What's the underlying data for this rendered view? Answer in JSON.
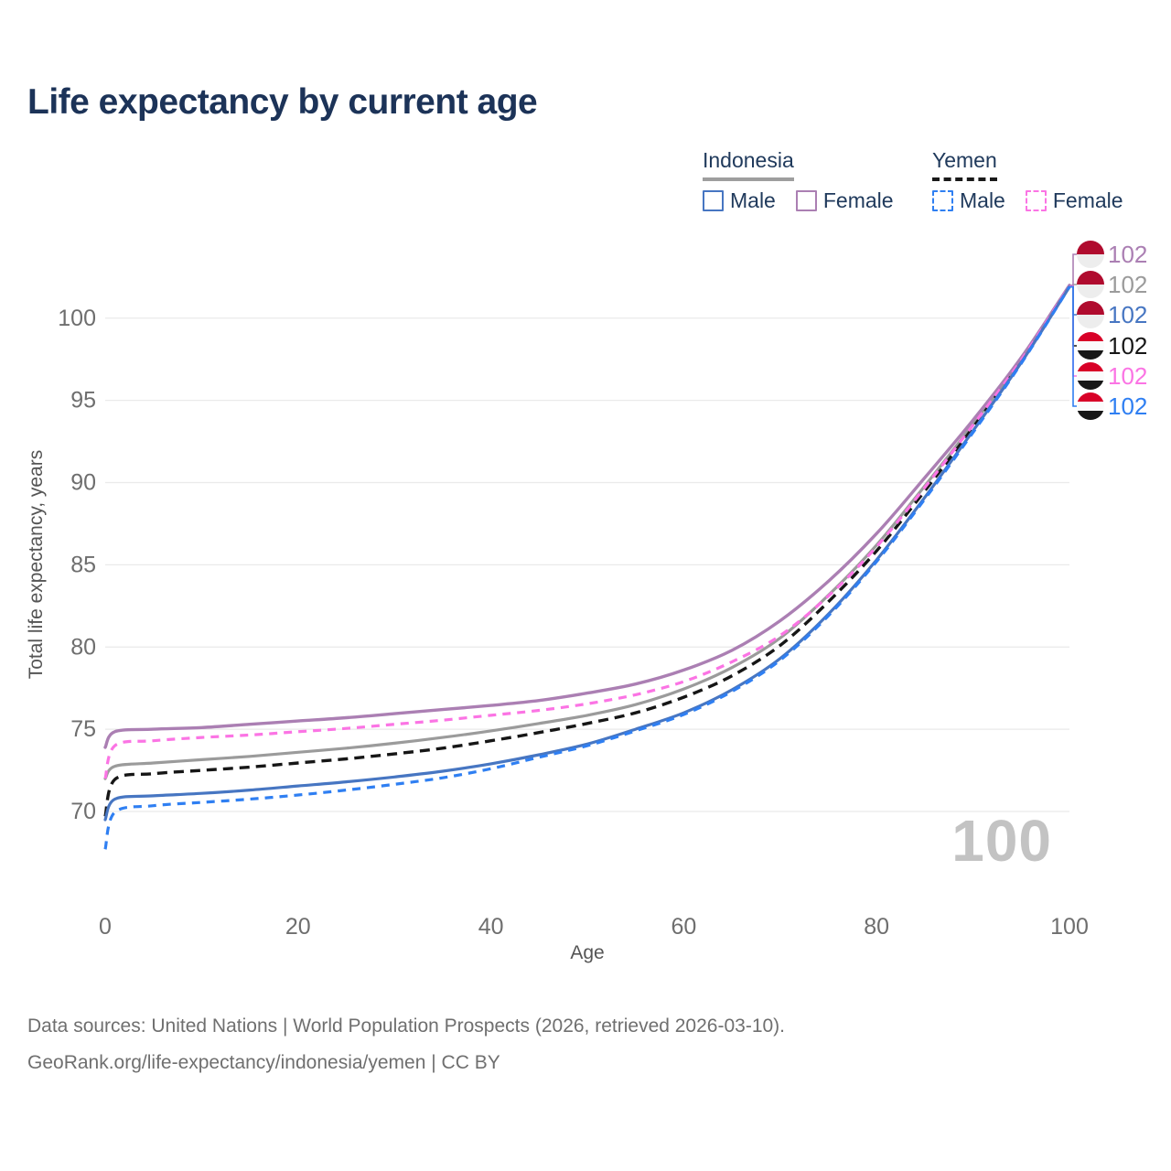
{
  "title": "Life expectancy by current age",
  "legend": {
    "groups": [
      {
        "label": "Indonesia",
        "underline_color": "#9e9e9e",
        "underline_style": "solid",
        "items": [
          {
            "label": "Male",
            "color": "#4776c2",
            "dashed": false
          },
          {
            "label": "Female",
            "color": "#ab7fb3",
            "dashed": false
          }
        ]
      },
      {
        "label": "Yemen",
        "underline_color": "#1a1a1a",
        "underline_style": "dashed",
        "items": [
          {
            "label": "Male",
            "color": "#2f7ff2",
            "dashed": true
          },
          {
            "label": "Female",
            "color": "#fb74e4",
            "dashed": true
          }
        ]
      }
    ]
  },
  "chart_data": {
    "type": "line",
    "title": "Life expectancy by current age",
    "xlabel": "Age",
    "ylabel": "Total life expectancy, years",
    "x_ticks": [
      0,
      20,
      40,
      60,
      80,
      100
    ],
    "y_ticks": [
      70,
      75,
      80,
      85,
      90,
      95,
      100
    ],
    "xlim": [
      0,
      100
    ],
    "ylim": [
      67,
      103
    ],
    "grid": "horizontal-only",
    "legend_position": "top-right",
    "x": [
      0,
      1,
      5,
      10,
      15,
      20,
      25,
      30,
      35,
      40,
      45,
      50,
      55,
      60,
      65,
      70,
      75,
      80,
      85,
      90,
      95,
      100
    ],
    "series": [
      {
        "name": "Indonesia (both sexes)",
        "country": "Indonesia",
        "sex": "both",
        "color": "#9b9b9b",
        "dash": null,
        "width": 3.2,
        "row": 1,
        "flag": "indonesia",
        "end_label": "102",
        "values": [
          72.0,
          72.75,
          72.95,
          73.15,
          73.35,
          73.6,
          73.85,
          74.15,
          74.5,
          74.9,
          75.35,
          75.85,
          76.5,
          77.45,
          78.75,
          80.55,
          83.15,
          86.2,
          89.8,
          93.55,
          97.5,
          101.97
        ]
      },
      {
        "name": "Yemen (both sexes)",
        "country": "Yemen",
        "sex": "both",
        "color": "#161616",
        "dash": "11 7",
        "width": 3.4,
        "row": 3,
        "flag": "yemen",
        "end_label": "102",
        "values": [
          69.7,
          71.95,
          72.3,
          72.5,
          72.7,
          72.95,
          73.2,
          73.5,
          73.85,
          74.3,
          74.8,
          75.35,
          76.0,
          76.95,
          78.25,
          80.1,
          82.75,
          85.85,
          89.5,
          93.35,
          97.4,
          101.93
        ]
      },
      {
        "name": "Indonesia Female",
        "country": "Indonesia",
        "sex": "female",
        "color": "#ab7fb3",
        "dash": null,
        "width": 3.4,
        "row": 0,
        "flag": "indonesia",
        "end_label": "102",
        "values": [
          73.9,
          74.85,
          75.0,
          75.1,
          75.3,
          75.5,
          75.7,
          75.95,
          76.2,
          76.45,
          76.75,
          77.2,
          77.75,
          78.6,
          79.8,
          81.6,
          84.0,
          86.9,
          90.3,
          93.8,
          97.6,
          102.0
        ]
      },
      {
        "name": "Yemen Female",
        "country": "Yemen",
        "sex": "female",
        "color": "#fb74e4",
        "dash": "9 7",
        "width": 3.2,
        "row": 4,
        "flag": "yemen",
        "end_label": "102",
        "values": [
          72.0,
          74.0,
          74.3,
          74.5,
          74.65,
          74.85,
          75.05,
          75.3,
          75.55,
          75.85,
          76.15,
          76.55,
          77.1,
          77.9,
          79.1,
          80.7,
          83.1,
          86.1,
          89.7,
          93.5,
          97.45,
          101.95
        ]
      },
      {
        "name": "Indonesia Male",
        "country": "Indonesia",
        "sex": "male",
        "color": "#4776c2",
        "dash": null,
        "width": 3.2,
        "row": 2,
        "flag": "indonesia",
        "end_label": "102",
        "values": [
          69.5,
          70.75,
          70.95,
          71.1,
          71.3,
          71.55,
          71.8,
          72.1,
          72.45,
          72.9,
          73.45,
          74.1,
          75.0,
          76.0,
          77.4,
          79.3,
          82.0,
          85.3,
          89.1,
          93.15,
          97.3,
          101.9
        ]
      },
      {
        "name": "Yemen Male",
        "country": "Yemen",
        "sex": "male",
        "color": "#2f7ff2",
        "dash": "9 7",
        "width": 3.2,
        "row": 5,
        "flag": "yemen",
        "end_label": "102",
        "values": [
          67.7,
          69.95,
          70.35,
          70.55,
          70.75,
          71.0,
          71.3,
          71.65,
          72.05,
          72.6,
          73.3,
          74.0,
          74.9,
          75.9,
          77.3,
          79.2,
          81.9,
          85.2,
          89.0,
          93.05,
          97.25,
          101.9
        ]
      }
    ],
    "flags": {
      "indonesia": {
        "stripes": [
          [
            "#b00b2e",
            50
          ],
          [
            "#ededed",
            50
          ]
        ]
      },
      "yemen": {
        "stripes": [
          [
            "#d80027",
            33.4
          ],
          [
            "#fbfbfb",
            33.3
          ],
          [
            "#171717",
            33.3
          ]
        ]
      }
    }
  },
  "watermark": "100",
  "footer": {
    "line1": "Data sources: United Nations | World Population Prospects (2026, retrieved 2026-03-10).",
    "line2": "GeoRank.org/life-expectancy/indonesia/yemen | CC BY"
  },
  "colors": {
    "title": "#1c3358",
    "axis_text": "#6e6e6e",
    "axis_title": "#555555",
    "gridline": "#eaeaea",
    "watermark": "#c3c3c3",
    "footer": "#6f6f6f"
  }
}
